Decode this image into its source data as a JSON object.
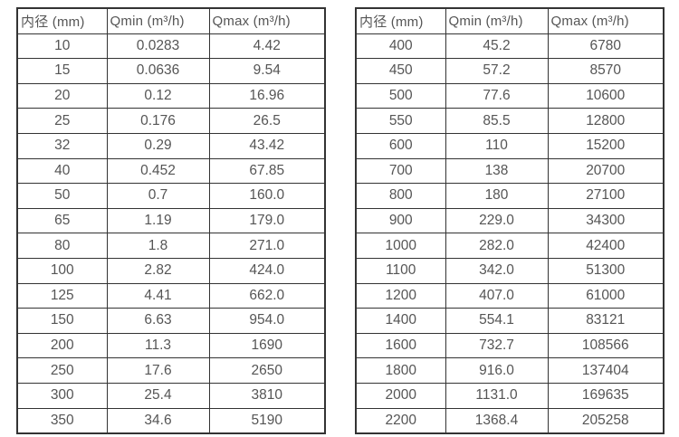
{
  "colors": {
    "background": "#ffffff",
    "border": "#333333",
    "text": "#555555"
  },
  "tables": [
    {
      "name": "flow-range-table-small-diameters",
      "headers": [
        "内径 (mm)",
        "Qmin (m³/h)",
        "Qmax (m³/h)"
      ],
      "rows": [
        [
          "10",
          "0.0283",
          "4.42"
        ],
        [
          "15",
          "0.0636",
          "9.54"
        ],
        [
          "20",
          "0.12",
          "16.96"
        ],
        [
          "25",
          "0.176",
          "26.5"
        ],
        [
          "32",
          "0.29",
          "43.42"
        ],
        [
          "40",
          "0.452",
          "67.85"
        ],
        [
          "50",
          "0.7",
          "160.0"
        ],
        [
          "65",
          "1.19",
          "179.0"
        ],
        [
          "80",
          "1.8",
          "271.0"
        ],
        [
          "100",
          "2.82",
          "424.0"
        ],
        [
          "125",
          "4.41",
          "662.0"
        ],
        [
          "150",
          "6.63",
          "954.0"
        ],
        [
          "200",
          "11.3",
          "1690"
        ],
        [
          "250",
          "17.6",
          "2650"
        ],
        [
          "300",
          "25.4",
          "3810"
        ],
        [
          "350",
          "34.6",
          "5190"
        ]
      ]
    },
    {
      "name": "flow-range-table-large-diameters",
      "headers": [
        "内径 (mm)",
        "Qmin (m³/h)",
        "Qmax (m³/h)"
      ],
      "rows": [
        [
          "400",
          "45.2",
          "6780"
        ],
        [
          "450",
          "57.2",
          "8570"
        ],
        [
          "500",
          "77.6",
          "10600"
        ],
        [
          "550",
          "85.5",
          "12800"
        ],
        [
          "600",
          "110",
          "15200"
        ],
        [
          "700",
          "138",
          "20700"
        ],
        [
          "800",
          "180",
          "27100"
        ],
        [
          "900",
          "229.0",
          "34300"
        ],
        [
          "1000",
          "282.0",
          "42400"
        ],
        [
          "1100",
          "342.0",
          "51300"
        ],
        [
          "1200",
          "407.0",
          "61000"
        ],
        [
          "1400",
          "554.1",
          "83121"
        ],
        [
          "1600",
          "732.7",
          "108566"
        ],
        [
          "1800",
          "916.0",
          "137404"
        ],
        [
          "2000",
          "1131.0",
          "169635"
        ],
        [
          "2200",
          "1368.4",
          "205258"
        ]
      ]
    }
  ]
}
